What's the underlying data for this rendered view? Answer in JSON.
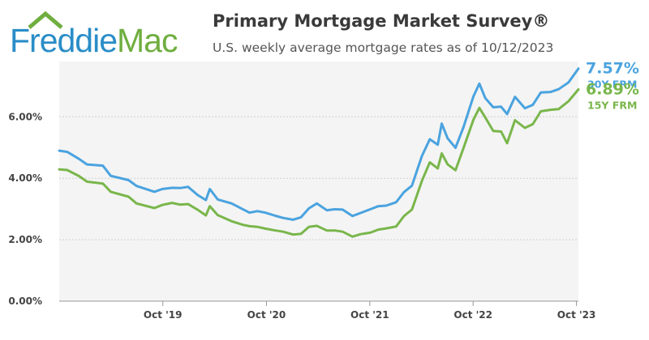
{
  "header": {
    "logo": {
      "word1": "Freddie",
      "word2": "Mac"
    },
    "title": "Primary Mortgage Market Survey®",
    "subtitle": "U.S. weekly average mortgage rates as of 10/12/2023"
  },
  "colors": {
    "series_30y": "#4aa3df",
    "series_15y": "#79b64b",
    "logo_blue": "#2a8dc8",
    "logo_green": "#6fae3f"
  },
  "chart_data": {
    "type": "line",
    "title": "Primary Mortgage Market Survey®",
    "subtitle": "U.S. weekly average mortgage rates as of 10/12/2023",
    "x_tick_labels": [
      "Oct '19",
      "Oct '20",
      "Oct '21",
      "Oct '22",
      "Oct '23"
    ],
    "y_tick_labels": [
      "0.00%",
      "2.00%",
      "4.00%",
      "6.00%"
    ],
    "ylim": [
      0,
      7.8
    ],
    "xlim": [
      "2018-10-04",
      "2023-10-12"
    ],
    "grid": "horizontal",
    "series": [
      {
        "key": "30y",
        "name": "30Y FRM",
        "end_value": "7.57%",
        "x": [
          "2018-10-04",
          "2018-11-01",
          "2018-12-13",
          "2019-01-10",
          "2019-03-07",
          "2019-04-04",
          "2019-06-06",
          "2019-07-04",
          "2019-09-05",
          "2019-10-03",
          "2019-11-07",
          "2019-12-05",
          "2020-01-02",
          "2020-02-06",
          "2020-03-05",
          "2020-03-19",
          "2020-04-16",
          "2020-06-04",
          "2020-07-16",
          "2020-08-06",
          "2020-09-03",
          "2020-10-01",
          "2020-11-05",
          "2020-12-03",
          "2021-01-07",
          "2021-02-04",
          "2021-03-04",
          "2021-04-01",
          "2021-05-06",
          "2021-06-03",
          "2021-07-01",
          "2021-08-05",
          "2021-09-02",
          "2021-10-07",
          "2021-11-04",
          "2021-12-02",
          "2022-01-06",
          "2022-02-03",
          "2022-03-03",
          "2022-04-07",
          "2022-05-05",
          "2022-06-02",
          "2022-06-16",
          "2022-07-07",
          "2022-08-04",
          "2022-09-01",
          "2022-10-06",
          "2022-10-27",
          "2022-11-17",
          "2022-12-15",
          "2023-01-12",
          "2023-02-02",
          "2023-03-02",
          "2023-04-06",
          "2023-05-04",
          "2023-06-01",
          "2023-07-06",
          "2023-08-03",
          "2023-09-07",
          "2023-10-12"
        ],
        "y": [
          4.9,
          4.86,
          4.63,
          4.45,
          4.41,
          4.08,
          3.94,
          3.75,
          3.56,
          3.65,
          3.69,
          3.68,
          3.72,
          3.45,
          3.29,
          3.65,
          3.31,
          3.18,
          2.98,
          2.88,
          2.93,
          2.88,
          2.78,
          2.71,
          2.65,
          2.73,
          3.02,
          3.18,
          2.96,
          2.99,
          2.98,
          2.77,
          2.87,
          2.99,
          3.09,
          3.11,
          3.22,
          3.55,
          3.76,
          4.72,
          5.27,
          5.09,
          5.78,
          5.3,
          4.99,
          5.66,
          6.66,
          7.08,
          6.61,
          6.31,
          6.33,
          6.09,
          6.65,
          6.28,
          6.39,
          6.79,
          6.81,
          6.9,
          7.12,
          7.57
        ]
      },
      {
        "key": "15y",
        "name": "15Y FRM",
        "end_value": "6.89%",
        "x": [
          "2018-10-04",
          "2018-11-01",
          "2018-12-13",
          "2019-01-10",
          "2019-03-07",
          "2019-04-04",
          "2019-06-06",
          "2019-07-04",
          "2019-09-05",
          "2019-10-03",
          "2019-11-07",
          "2019-12-05",
          "2020-01-02",
          "2020-02-06",
          "2020-03-05",
          "2020-03-19",
          "2020-04-16",
          "2020-06-04",
          "2020-07-16",
          "2020-08-06",
          "2020-09-03",
          "2020-10-01",
          "2020-11-05",
          "2020-12-03",
          "2021-01-07",
          "2021-02-04",
          "2021-03-04",
          "2021-04-01",
          "2021-05-06",
          "2021-06-03",
          "2021-07-01",
          "2021-08-05",
          "2021-09-02",
          "2021-10-07",
          "2021-11-04",
          "2021-12-02",
          "2022-01-06",
          "2022-02-03",
          "2022-03-03",
          "2022-04-07",
          "2022-05-05",
          "2022-06-02",
          "2022-06-16",
          "2022-07-07",
          "2022-08-04",
          "2022-09-01",
          "2022-10-06",
          "2022-10-27",
          "2022-11-17",
          "2022-12-15",
          "2023-01-12",
          "2023-02-02",
          "2023-03-02",
          "2023-04-06",
          "2023-05-04",
          "2023-06-01",
          "2023-07-06",
          "2023-08-03",
          "2023-09-07",
          "2023-10-12"
        ],
        "y": [
          4.29,
          4.27,
          4.07,
          3.89,
          3.83,
          3.56,
          3.4,
          3.18,
          3.03,
          3.13,
          3.2,
          3.14,
          3.16,
          2.97,
          2.79,
          3.09,
          2.8,
          2.6,
          2.48,
          2.44,
          2.42,
          2.36,
          2.3,
          2.26,
          2.17,
          2.19,
          2.42,
          2.45,
          2.3,
          2.3,
          2.26,
          2.1,
          2.18,
          2.23,
          2.33,
          2.37,
          2.43,
          2.77,
          2.98,
          3.91,
          4.52,
          4.32,
          4.81,
          4.45,
          4.26,
          4.98,
          5.9,
          6.29,
          5.98,
          5.54,
          5.52,
          5.14,
          5.89,
          5.64,
          5.76,
          6.18,
          6.23,
          6.25,
          6.51,
          6.89
        ]
      }
    ]
  }
}
